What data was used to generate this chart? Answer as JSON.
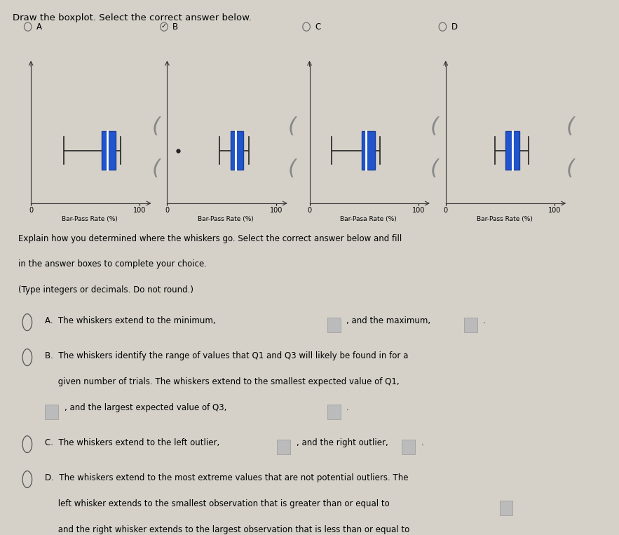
{
  "title": "Draw the boxplot. Select the correct answer below.",
  "bg_color": "#d5d1c9",
  "box_color": "#2255cc",
  "box_color_dark": "#1a3f99",
  "whisker_color": "#222222",
  "plots": [
    {
      "label": "A",
      "selected": false,
      "q1": 65,
      "q3": 78,
      "median": 70,
      "whisker_low": 30,
      "whisker_high": 82,
      "outlier": null,
      "xlabel": "Bar-Pass Rate (%)"
    },
    {
      "label": "B",
      "selected": true,
      "q1": 58,
      "q3": 70,
      "median": 63,
      "whisker_low": 48,
      "whisker_high": 75,
      "outlier": 10,
      "xlabel": "Bar-Pass Rate (%)"
    },
    {
      "label": "C",
      "selected": false,
      "q1": 48,
      "q3": 60,
      "median": 52,
      "whisker_low": 20,
      "whisker_high": 65,
      "outlier": null,
      "xlabel": "Bar-Pasa Rate (%)"
    },
    {
      "label": "D",
      "selected": false,
      "q1": 55,
      "q3": 68,
      "median": 61,
      "whisker_low": 45,
      "whisker_high": 76,
      "outlier": null,
      "xlabel": "Bar-Pass Rate (%)"
    }
  ],
  "xlim": [
    0,
    108
  ],
  "xticks": [
    0,
    100
  ],
  "question_lines": [
    "Explain how you determined where the whiskers go. Select the correct answer below and fill",
    "in the answer boxes to complete your choice.",
    "(Type integers or decimals. Do not round.)"
  ]
}
